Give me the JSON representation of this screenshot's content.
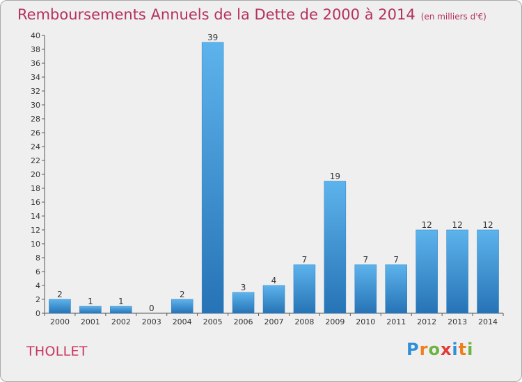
{
  "title": "Remboursements Annuels de la Dette de 2000 à 2014",
  "unit": "(en milliers d'€)",
  "commune": "THOLLET",
  "logo": {
    "letters": [
      "P",
      "r",
      "o",
      "x",
      "i",
      "t",
      "i"
    ],
    "colors": [
      "#2f8fd8",
      "#f07e1c",
      "#6cb33f",
      "#e33a3a",
      "#2f8fd8",
      "#f07e1c",
      "#6cb33f"
    ]
  },
  "chart_data": {
    "type": "bar",
    "title": "Remboursements Annuels de la Dette de 2000 à 2014",
    "xlabel": "",
    "ylabel": "",
    "categories": [
      "2000",
      "2001",
      "2002",
      "2003",
      "2004",
      "2005",
      "2006",
      "2007",
      "2008",
      "2009",
      "2010",
      "2011",
      "2012",
      "2013",
      "2014"
    ],
    "values": [
      2,
      1,
      1,
      0,
      2,
      39,
      3,
      4,
      7,
      19,
      7,
      7,
      12,
      12,
      12
    ],
    "ylim": [
      0,
      40
    ],
    "yticks": [
      0,
      2,
      4,
      6,
      8,
      10,
      12,
      14,
      16,
      18,
      20,
      22,
      24,
      26,
      28,
      30,
      32,
      34,
      36,
      38,
      40
    ],
    "grid": false,
    "bar_color": "#3a95dc"
  }
}
